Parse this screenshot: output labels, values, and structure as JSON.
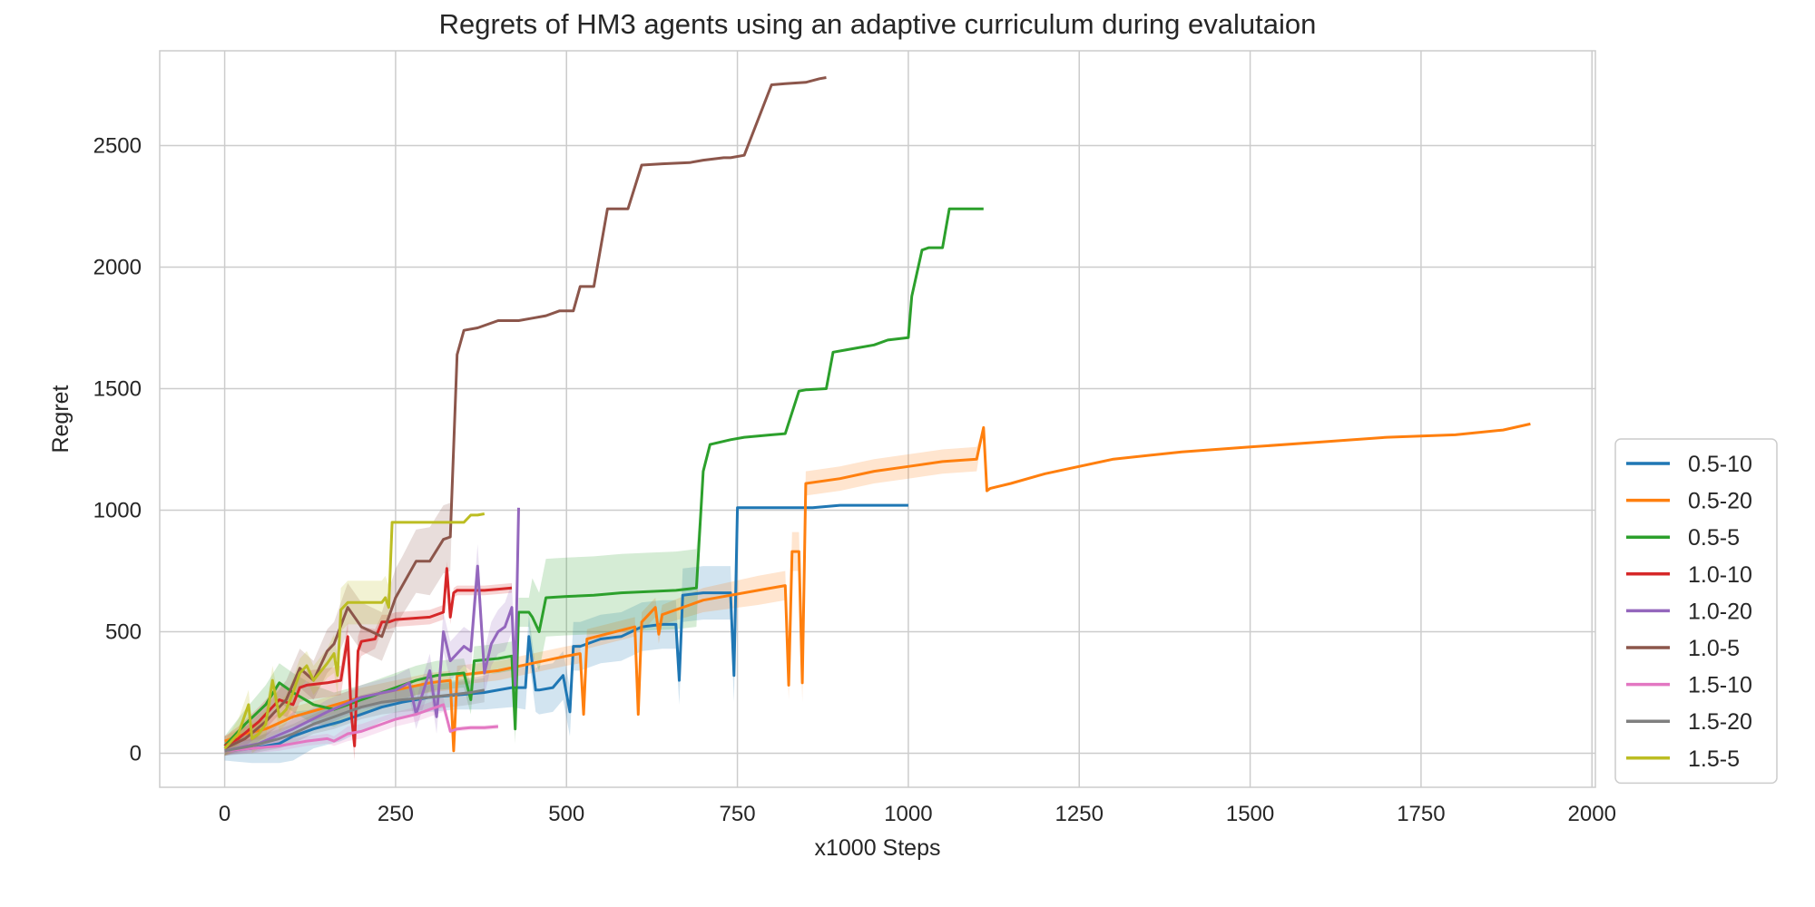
{
  "chart_data": {
    "type": "line",
    "title": "Regrets of HM3 agents using an adaptive curriculum during evalutaion",
    "xlabel": "x1000 Steps",
    "ylabel": "Regret",
    "xlim": [
      -95,
      2005
    ],
    "ylim": [
      -140,
      2890
    ],
    "xticks": [
      0,
      250,
      500,
      750,
      1000,
      1250,
      1500,
      1750,
      2000
    ],
    "yticks": [
      0,
      500,
      1000,
      1500,
      2000,
      2500
    ],
    "grid": true,
    "legend_position": "lower-right",
    "series": [
      {
        "name": "0.5-10",
        "color": "#1f77b4",
        "x": [
          0,
          40,
          80,
          100,
          130,
          170,
          200,
          230,
          260,
          300,
          340,
          380,
          420,
          440,
          445,
          455,
          460,
          480,
          495,
          505,
          510,
          520,
          550,
          580,
          610,
          640,
          660,
          665,
          670,
          700,
          740,
          745,
          750,
          780,
          820,
          860,
          900,
          930,
          960,
          1000
        ],
        "y": [
          10,
          20,
          40,
          70,
          100,
          130,
          160,
          190,
          210,
          230,
          240,
          250,
          270,
          270,
          480,
          260,
          260,
          270,
          320,
          170,
          440,
          440,
          470,
          480,
          520,
          530,
          530,
          300,
          650,
          660,
          660,
          320,
          1010,
          1010,
          1010,
          1010,
          1020,
          1020,
          1020,
          1020
        ],
        "band": [
          40,
          60,
          80,
          100,
          80,
          80,
          70,
          60,
          60,
          60,
          60,
          70,
          80,
          90,
          90,
          90,
          100,
          100,
          100,
          100,
          100,
          100,
          100,
          100,
          100,
          100,
          100,
          100,
          110,
          110,
          110,
          110,
          0,
          0,
          0,
          0,
          0,
          0,
          0,
          0
        ]
      },
      {
        "name": "0.5-20",
        "color": "#ff7f0e",
        "x": [
          0,
          30,
          60,
          100,
          150,
          200,
          250,
          300,
          330,
          335,
          340,
          400,
          450,
          500,
          520,
          525,
          530,
          600,
          605,
          610,
          630,
          635,
          640,
          700,
          780,
          820,
          825,
          830,
          840,
          845,
          850,
          900,
          950,
          1000,
          1050,
          1100,
          1110,
          1115,
          1120,
          1150,
          1200,
          1300,
          1400,
          1500,
          1600,
          1700,
          1800,
          1870,
          1910
        ],
        "y": [
          50,
          80,
          100,
          150,
          190,
          230,
          260,
          290,
          300,
          10,
          320,
          340,
          370,
          400,
          410,
          160,
          470,
          520,
          160,
          540,
          600,
          490,
          570,
          630,
          670,
          690,
          280,
          830,
          830,
          290,
          1110,
          1130,
          1160,
          1180,
          1200,
          1210,
          1340,
          1080,
          1090,
          1110,
          1150,
          1210,
          1240,
          1260,
          1280,
          1300,
          1310,
          1330,
          1355
        ],
        "band": [
          20,
          30,
          40,
          40,
          40,
          40,
          40,
          40,
          40,
          0,
          40,
          40,
          40,
          40,
          40,
          0,
          40,
          40,
          0,
          40,
          40,
          40,
          40,
          50,
          60,
          60,
          60,
          80,
          80,
          80,
          50,
          50,
          50,
          50,
          50,
          50,
          0,
          0,
          0,
          0,
          0,
          0,
          0,
          0,
          0,
          0,
          0,
          0,
          0
        ]
      },
      {
        "name": "0.5-5",
        "color": "#2ca02c",
        "x": [
          0,
          30,
          60,
          80,
          100,
          130,
          160,
          200,
          220,
          250,
          280,
          310,
          350,
          360,
          365,
          400,
          420,
          425,
          430,
          445,
          450,
          460,
          470,
          500,
          540,
          580,
          620,
          660,
          690,
          700,
          710,
          740,
          760,
          800,
          820,
          840,
          850,
          880,
          890,
          910,
          950,
          970,
          1000,
          1005,
          1020,
          1030,
          1050,
          1060,
          1100,
          1110
        ],
        "y": [
          30,
          120,
          200,
          290,
          250,
          200,
          180,
          220,
          240,
          270,
          300,
          320,
          330,
          220,
          380,
          390,
          400,
          100,
          580,
          580,
          560,
          500,
          640,
          645,
          650,
          660,
          665,
          670,
          680,
          1160,
          1270,
          1290,
          1300,
          1310,
          1315,
          1490,
          1495,
          1500,
          1650,
          1660,
          1680,
          1700,
          1710,
          1880,
          2070,
          2080,
          2080,
          2240,
          2240,
          2240
        ],
        "band": [
          40,
          60,
          80,
          80,
          80,
          80,
          70,
          60,
          60,
          60,
          60,
          60,
          60,
          60,
          60,
          60,
          60,
          60,
          60,
          60,
          160,
          160,
          160,
          160,
          160,
          160,
          160,
          160,
          160,
          0,
          0,
          0,
          0,
          0,
          0,
          0,
          0,
          0,
          0,
          0,
          0,
          0,
          0,
          0,
          0,
          0,
          0,
          0,
          0,
          0
        ]
      },
      {
        "name": "1.0-10",
        "color": "#d62728",
        "x": [
          0,
          20,
          50,
          80,
          100,
          110,
          120,
          150,
          170,
          180,
          185,
          190,
          195,
          200,
          220,
          230,
          240,
          250,
          300,
          320,
          325,
          330,
          335,
          340,
          360,
          380,
          400,
          420
        ],
        "y": [
          30,
          60,
          130,
          220,
          200,
          270,
          280,
          290,
          300,
          480,
          170,
          30,
          420,
          460,
          470,
          540,
          540,
          550,
          560,
          580,
          760,
          560,
          660,
          670,
          670,
          670,
          675,
          680
        ],
        "band": [
          40,
          50,
          60,
          60,
          60,
          60,
          60,
          60,
          60,
          60,
          60,
          60,
          60,
          60,
          40,
          30,
          30,
          30,
          30,
          30,
          30,
          30,
          20,
          20,
          20,
          20,
          20,
          20
        ]
      },
      {
        "name": "1.0-20",
        "color": "#9467bd",
        "x": [
          0,
          50,
          100,
          150,
          200,
          250,
          270,
          280,
          300,
          310,
          320,
          330,
          350,
          360,
          370,
          380,
          390,
          400,
          410,
          420,
          425,
          430
        ],
        "y": [
          10,
          40,
          100,
          170,
          230,
          260,
          290,
          160,
          340,
          150,
          500,
          380,
          440,
          420,
          770,
          330,
          450,
          500,
          520,
          600,
          280,
          1010
        ],
        "band": [
          20,
          30,
          40,
          50,
          50,
          60,
          60,
          60,
          70,
          70,
          80,
          80,
          80,
          80,
          90,
          90,
          90,
          90,
          100,
          100,
          100,
          0
        ]
      },
      {
        "name": "1.0-5",
        "color": "#8c564b",
        "x": [
          0,
          30,
          60,
          90,
          110,
          130,
          150,
          160,
          180,
          200,
          230,
          250,
          260,
          280,
          300,
          320,
          330,
          340,
          350,
          370,
          400,
          430,
          450,
          470,
          490,
          510,
          520,
          540,
          560,
          590,
          610,
          640,
          680,
          700,
          730,
          740,
          760,
          800,
          820,
          850,
          870,
          880
        ],
        "y": [
          20,
          60,
          130,
          220,
          350,
          300,
          420,
          450,
          600,
          520,
          480,
          640,
          690,
          790,
          790,
          880,
          890,
          1640,
          1740,
          1750,
          1780,
          1780,
          1790,
          1800,
          1820,
          1820,
          1920,
          1920,
          2240,
          2240,
          2420,
          2425,
          2430,
          2440,
          2450,
          2450,
          2460,
          2750,
          2755,
          2760,
          2775,
          2780
        ],
        "band": [
          30,
          50,
          60,
          80,
          80,
          80,
          90,
          90,
          100,
          100,
          100,
          120,
          120,
          130,
          140,
          140,
          140,
          0,
          0,
          0,
          0,
          0,
          0,
          0,
          0,
          0,
          0,
          0,
          0,
          0,
          0,
          0,
          0,
          0,
          0,
          0,
          0,
          0,
          0,
          0,
          0,
          0
        ]
      },
      {
        "name": "1.5-10",
        "color": "#e377c2",
        "x": [
          0,
          40,
          80,
          100,
          120,
          150,
          160,
          180,
          200,
          220,
          250,
          280,
          300,
          320,
          330,
          340,
          360,
          380,
          400
        ],
        "y": [
          10,
          20,
          30,
          40,
          50,
          60,
          50,
          80,
          90,
          110,
          140,
          160,
          180,
          200,
          90,
          100,
          105,
          105,
          110
        ],
        "band": [
          10,
          20,
          20,
          20,
          20,
          20,
          20,
          30,
          30,
          30,
          30,
          30,
          30,
          30,
          10,
          10,
          10,
          10,
          10
        ]
      },
      {
        "name": "1.5-20",
        "color": "#7f7f7f",
        "x": [
          0,
          40,
          80,
          100,
          130,
          160,
          180,
          200,
          230,
          260,
          300,
          330,
          360,
          380
        ],
        "y": [
          10,
          30,
          60,
          80,
          120,
          150,
          170,
          190,
          210,
          220,
          230,
          240,
          250,
          260
        ],
        "band": [
          20,
          30,
          40,
          40,
          40,
          50,
          50,
          50,
          50,
          50,
          50,
          50,
          50,
          50
        ]
      },
      {
        "name": "1.5-5",
        "color": "#bcbd22",
        "x": [
          0,
          20,
          35,
          40,
          50,
          60,
          70,
          80,
          90,
          100,
          110,
          120,
          130,
          150,
          160,
          165,
          170,
          180,
          200,
          220,
          230,
          235,
          240,
          245,
          250,
          300,
          350,
          360,
          370,
          380
        ],
        "y": [
          20,
          80,
          200,
          60,
          80,
          120,
          300,
          150,
          180,
          250,
          330,
          360,
          300,
          370,
          410,
          320,
          590,
          620,
          620,
          620,
          620,
          640,
          600,
          950,
          950,
          950,
          950,
          980,
          980,
          985
        ],
        "band": [
          30,
          60,
          60,
          60,
          60,
          60,
          60,
          60,
          60,
          60,
          60,
          60,
          60,
          60,
          80,
          80,
          90,
          90,
          90,
          90,
          90,
          90,
          90,
          0,
          0,
          0,
          0,
          0,
          0,
          0
        ]
      }
    ]
  }
}
